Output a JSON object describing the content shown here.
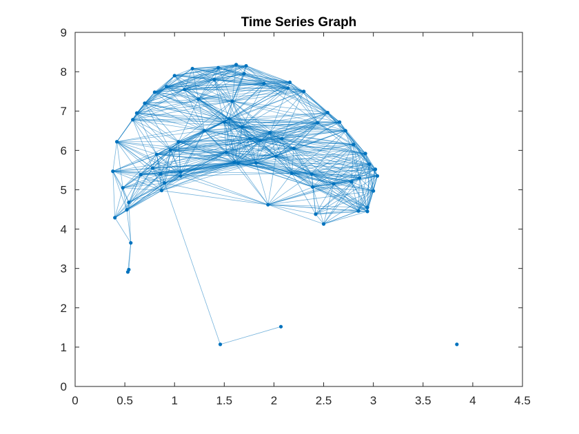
{
  "chart_data": {
    "type": "scatter",
    "title": "Time Series Graph",
    "xlabel": "",
    "ylabel": "",
    "xlim": [
      0,
      4.5
    ],
    "ylim": [
      0,
      9
    ],
    "x_ticks": [
      "0",
      "0.5",
      "1",
      "1.5",
      "2",
      "2.5",
      "3",
      "3.5",
      "4",
      "4.5"
    ],
    "y_ticks": [
      "0",
      "1",
      "2",
      "3",
      "4",
      "5",
      "6",
      "7",
      "8",
      "9"
    ],
    "grid": false,
    "legend": "none",
    "color": "#0072BD",
    "series": [
      {
        "points": [
          [
            0.38,
            5.47
          ],
          [
            0.42,
            6.22
          ],
          [
            0.4,
            4.29
          ],
          [
            0.48,
            5.05
          ],
          [
            0.52,
            4.49
          ],
          [
            0.54,
            4.68
          ],
          [
            0.56,
            3.65
          ],
          [
            0.54,
            2.97
          ],
          [
            0.53,
            2.91
          ],
          [
            0.58,
            6.78
          ],
          [
            0.62,
            6.95
          ],
          [
            0.66,
            5.38
          ],
          [
            0.7,
            7.2
          ],
          [
            0.78,
            5.55
          ],
          [
            0.8,
            7.48
          ],
          [
            0.82,
            5.9
          ],
          [
            0.86,
            5.4
          ],
          [
            0.87,
            4.98
          ],
          [
            0.9,
            5.17
          ],
          [
            0.92,
            7.62
          ],
          [
            0.96,
            6.01
          ],
          [
            1.0,
            7.9
          ],
          [
            1.04,
            6.22
          ],
          [
            1.06,
            5.35
          ],
          [
            1.06,
            5.45
          ],
          [
            1.1,
            7.55
          ],
          [
            1.18,
            8.08
          ],
          [
            1.24,
            7.3
          ],
          [
            1.3,
            6.5
          ],
          [
            1.4,
            7.8
          ],
          [
            1.44,
            8.1
          ],
          [
            1.46,
            1.07
          ],
          [
            1.5,
            6.72
          ],
          [
            1.52,
            5.95
          ],
          [
            1.55,
            6.8
          ],
          [
            1.58,
            7.25
          ],
          [
            1.6,
            5.7
          ],
          [
            1.62,
            8.18
          ],
          [
            1.64,
            5.68
          ],
          [
            1.68,
            6.6
          ],
          [
            1.7,
            7.95
          ],
          [
            1.72,
            8.15
          ],
          [
            1.76,
            6.3
          ],
          [
            1.82,
            5.68
          ],
          [
            1.86,
            6.25
          ],
          [
            1.9,
            7.7
          ],
          [
            1.94,
            4.62
          ],
          [
            1.96,
            6.45
          ],
          [
            2.02,
            5.85
          ],
          [
            2.07,
            1.52
          ],
          [
            2.08,
            6.3
          ],
          [
            2.14,
            7.58
          ],
          [
            2.16,
            7.73
          ],
          [
            2.18,
            5.42
          ],
          [
            2.2,
            6.05
          ],
          [
            2.3,
            7.5
          ],
          [
            2.38,
            5.4
          ],
          [
            2.39,
            5.07
          ],
          [
            2.42,
            4.38
          ],
          [
            2.44,
            6.7
          ],
          [
            2.5,
            4.13
          ],
          [
            2.54,
            6.96
          ],
          [
            2.6,
            5.15
          ],
          [
            2.66,
            6.72
          ],
          [
            2.72,
            6.5
          ],
          [
            2.78,
            5.2
          ],
          [
            2.8,
            6.15
          ],
          [
            2.85,
            4.46
          ],
          [
            2.86,
            5.3
          ],
          [
            2.92,
            5.92
          ],
          [
            2.94,
            4.45
          ],
          [
            2.94,
            4.55
          ],
          [
            2.96,
            5.65
          ],
          [
            3.0,
            4.97
          ],
          [
            3.02,
            5.52
          ],
          [
            3.04,
            5.35
          ],
          [
            3.84,
            1.07
          ]
        ]
      }
    ]
  }
}
